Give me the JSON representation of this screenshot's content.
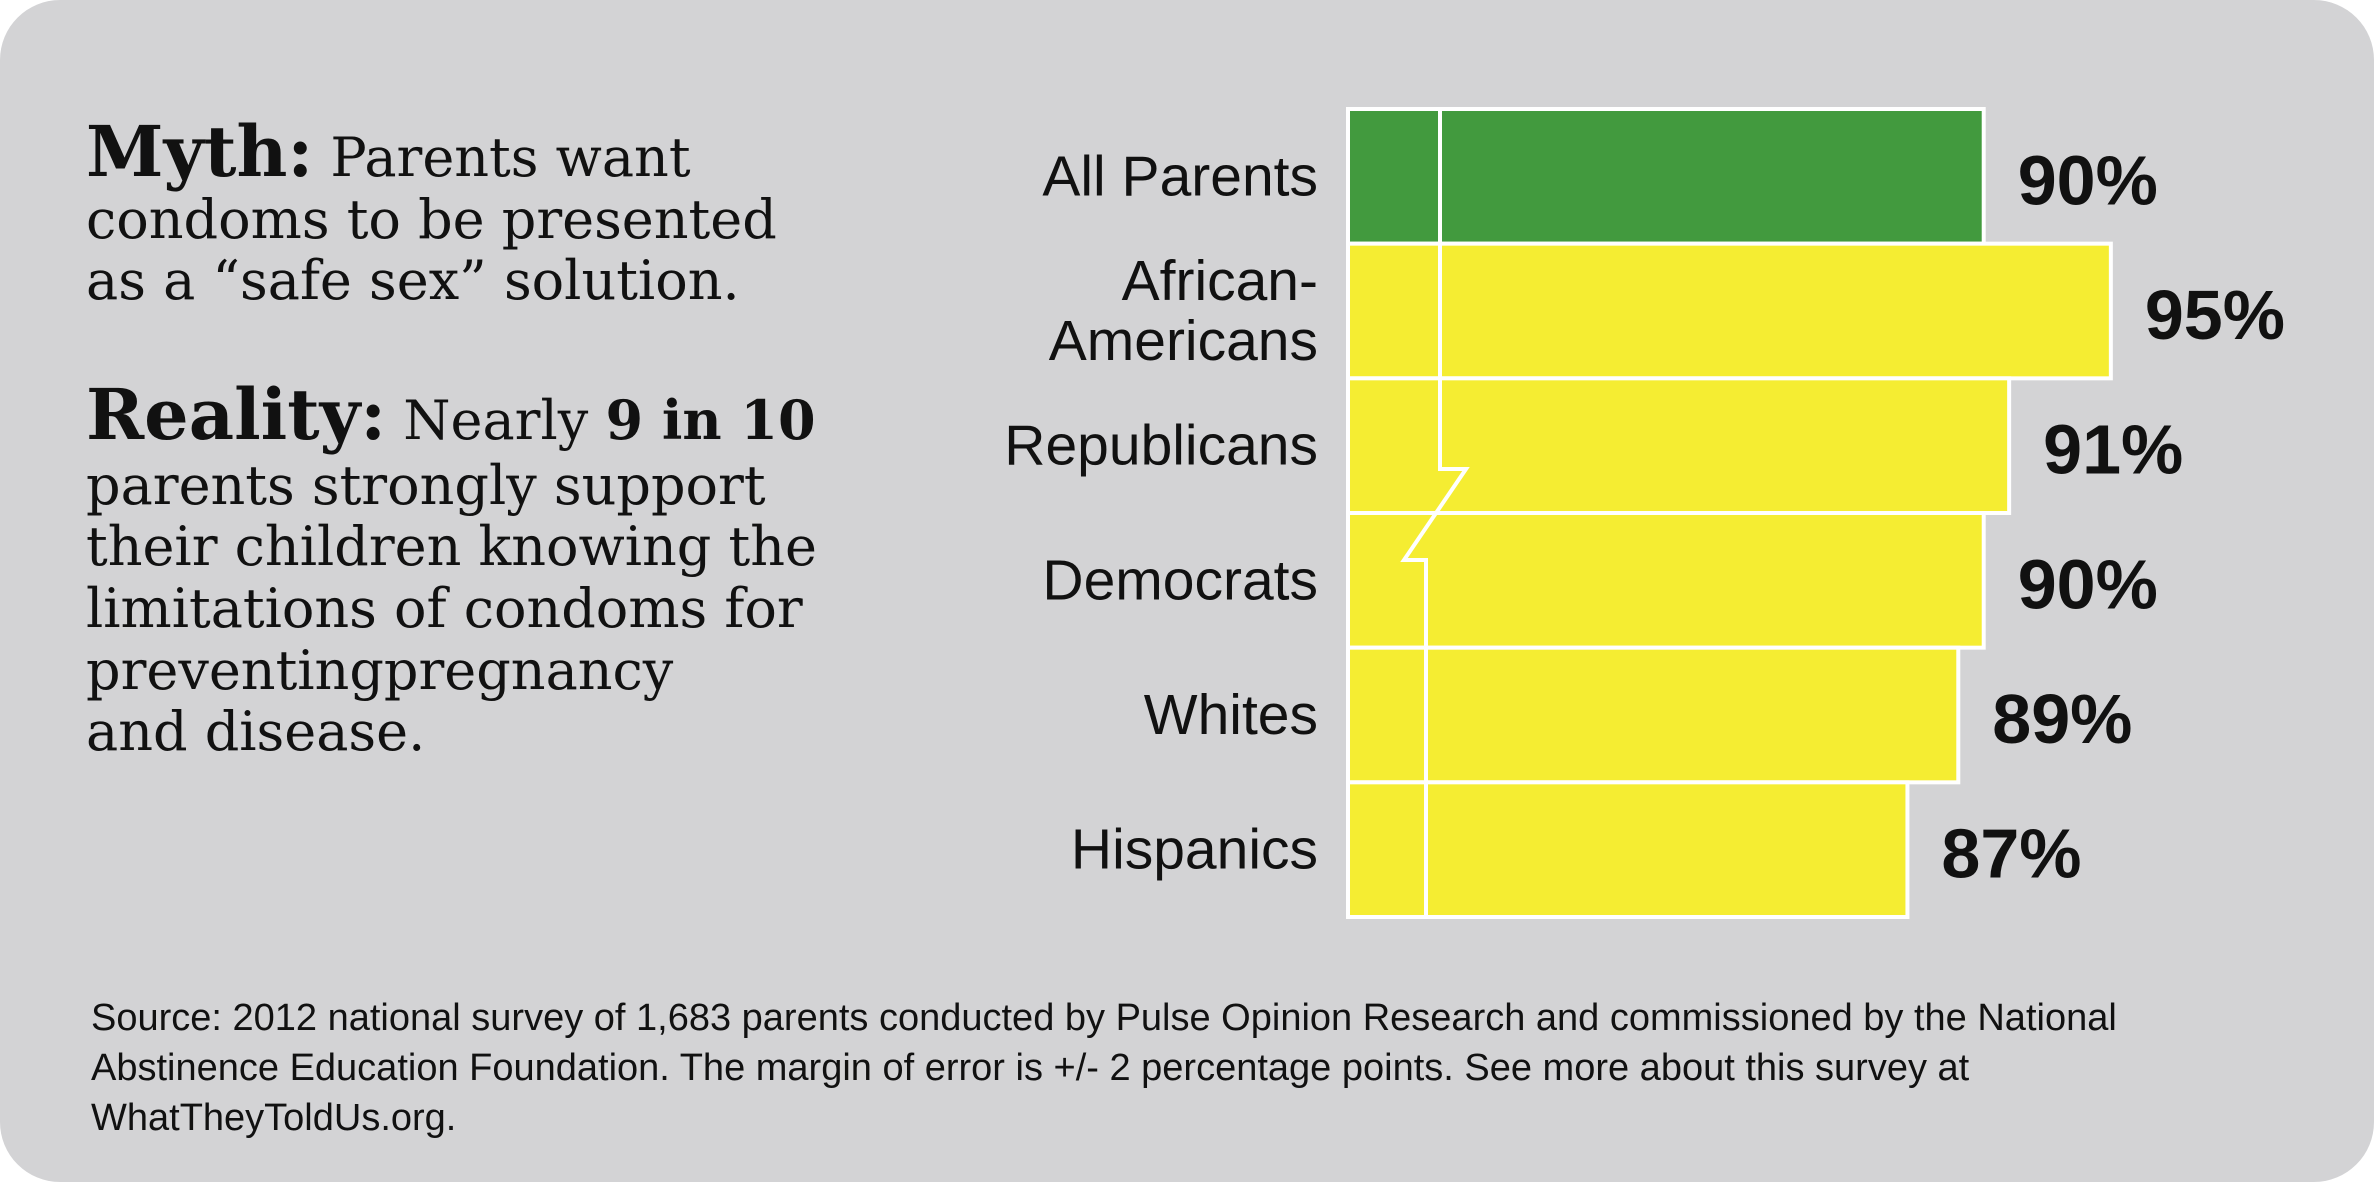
{
  "myth": {
    "label": "Myth:",
    "lines": [
      "Parents want",
      "condoms to be presented",
      "as a “safe sex” solution."
    ]
  },
  "reality": {
    "label": "Reality:",
    "lead": "Nearly",
    "emphasis": "9 in 10",
    "lines": [
      "parents strongly support",
      "their children knowing the",
      "limitations of condoms for",
      "preventingpregnancy",
      "and disease."
    ]
  },
  "chart_data": {
    "type": "bar",
    "orientation": "horizontal",
    "categories": [
      "All Parents",
      "African-Americans",
      "Republicans",
      "Democrats",
      "Whites",
      "Hispanics"
    ],
    "values": [
      90,
      95,
      91,
      90,
      89,
      87
    ],
    "value_labels": [
      "90%",
      "95%",
      "91%",
      "90%",
      "89%",
      "87%"
    ],
    "colors": [
      "#429a3e",
      "#f5ed32",
      "#f5ed32",
      "#f5ed32",
      "#f5ed32",
      "#f5ed32"
    ],
    "xlim": [
      65,
      100
    ],
    "axis_break": true
  },
  "source": {
    "lines": [
      "Source: 2012 national survey of 1,683 parents conducted by Pulse Opinion Research and commissioned by the National",
      "Abstinence Education Foundation. The margin of error is +/- 2 percentage points. See more about this survey at",
      "WhatTheyToldUs.org."
    ]
  }
}
